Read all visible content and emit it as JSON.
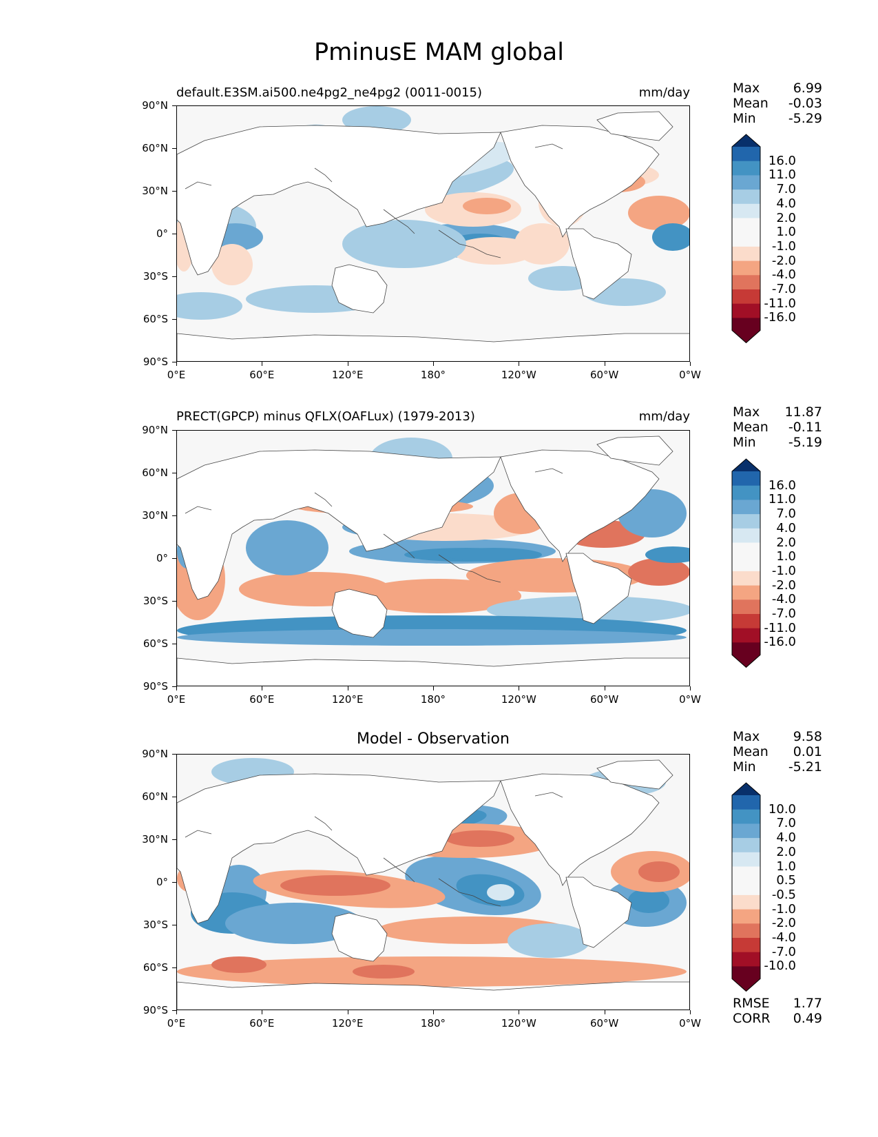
{
  "page_title": "PminusE MAM global",
  "lat_labels": [
    "90°N",
    "60°N",
    "30°N",
    "0°",
    "30°S",
    "60°S",
    "90°S"
  ],
  "lon_labels": [
    "0°E",
    "60°E",
    "120°E",
    "180°",
    "120°W",
    "60°W",
    "0°W"
  ],
  "colors": {
    "blue": [
      "#08306b",
      "#2166ac",
      "#4393c3",
      "#6aa7d2",
      "#a7cde4",
      "#d7e8f2"
    ],
    "neutral": "#f7f7f7",
    "red": [
      "#fbdccb",
      "#f4a582",
      "#e0745d",
      "#c63a36",
      "#a10f26",
      "#67001f"
    ],
    "land": "#ffffff",
    "coast": "#444444"
  },
  "panels": [
    {
      "title_left": "default.E3SM.ai500.ne4pg2_ne4pg2 (0011-0015)",
      "title_right": "mm/day",
      "title_center": "",
      "stats": [
        {
          "key": "Max",
          "value": "6.99"
        },
        {
          "key": "Mean",
          "value": "-0.03"
        },
        {
          "key": "Min",
          "value": "-5.29"
        }
      ],
      "colorbar_labels": [
        "16.0",
        "11.0",
        "7.0",
        "4.0",
        "2.0",
        "1.0",
        "-1.0",
        "-2.0",
        "-4.0",
        "-7.0",
        "-11.0",
        "-16.0"
      ]
    },
    {
      "title_left": "PRECT(GPCP) minus QFLX(OAFLux) (1979-2013)",
      "title_right": "mm/day",
      "title_center": "",
      "stats": [
        {
          "key": "Max",
          "value": "11.87"
        },
        {
          "key": "Mean",
          "value": "-0.11"
        },
        {
          "key": "Min",
          "value": "-5.19"
        }
      ],
      "colorbar_labels": [
        "16.0",
        "11.0",
        "7.0",
        "4.0",
        "2.0",
        "1.0",
        "-1.0",
        "-2.0",
        "-4.0",
        "-7.0",
        "-11.0",
        "-16.0"
      ]
    },
    {
      "title_left": "",
      "title_right": "",
      "title_center": "Model - Observation",
      "stats": [
        {
          "key": "Max",
          "value": "9.58"
        },
        {
          "key": "Mean",
          "value": "0.01"
        },
        {
          "key": "Min",
          "value": "-5.21"
        }
      ],
      "colorbar_labels": [
        "10.0",
        "7.0",
        "4.0",
        "2.0",
        "1.0",
        "0.5",
        "-0.5",
        "-1.0",
        "-2.0",
        "-4.0",
        "-7.0",
        "-10.0"
      ],
      "metrics": [
        {
          "key": "RMSE",
          "value": "1.77"
        },
        {
          "key": "CORR",
          "value": "0.49"
        }
      ]
    }
  ]
}
